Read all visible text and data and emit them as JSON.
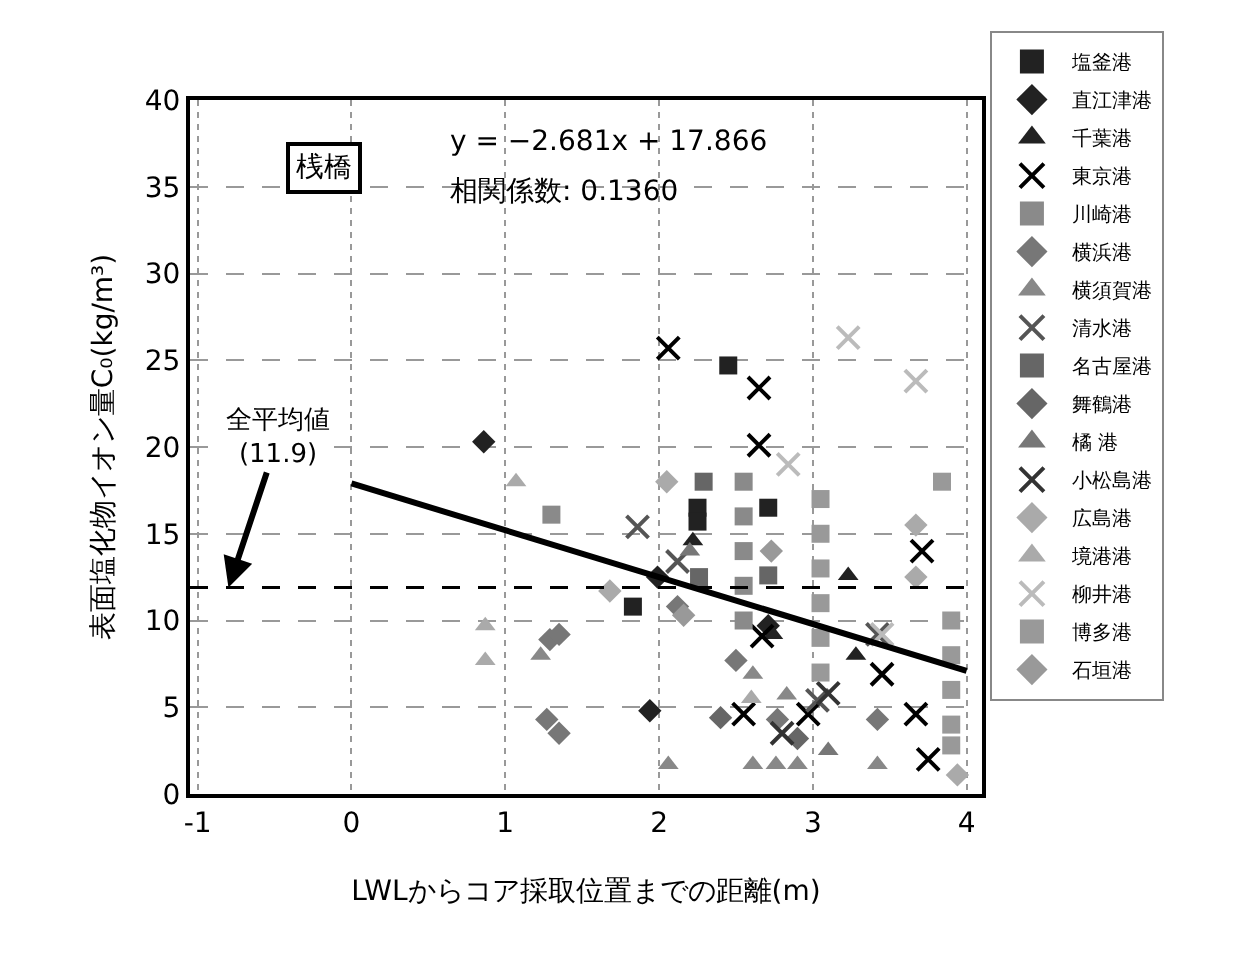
{
  "chart_data": {
    "type": "scatter",
    "xlabel": "LWLからコア採取位置までの距離(m)",
    "ylabel": "表面塩化物イオン量C₀(kg/m³)",
    "xlim": [
      -1.05,
      4.1
    ],
    "ylim": [
      0,
      40
    ],
    "xticks": [
      -1,
      0,
      1,
      2,
      3,
      4
    ],
    "yticks": [
      0,
      5,
      10,
      15,
      20,
      25,
      30,
      35,
      40
    ],
    "grid": true,
    "legend": "right",
    "annotations": [
      "桟橋",
      "y = −2.681x + 17.866",
      "相関係数: 0.1360",
      {
        "text": "全平均値\n(11.9)",
        "x": -0.8,
        "y": 11.9
      }
    ],
    "ref_lines": [
      {
        "axis": "y",
        "value": 11.9,
        "color": "#000000",
        "line_style": "dashed"
      }
    ],
    "series": [
      {
        "name": "塩釜港",
        "color": "#222222",
        "marker": "square",
        "x": [
          2.45,
          1.83,
          2.25,
          2.25,
          2.71
        ],
        "values": [
          24.7,
          10.8,
          16.5,
          15.7,
          16.5
        ]
      },
      {
        "name": "直江津港",
        "color": "#222222",
        "marker": "diamond",
        "x": [
          0.86,
          1.94,
          2.71,
          1.99
        ],
        "values": [
          20.3,
          4.8,
          9.7,
          12.5
        ]
      },
      {
        "name": "千葉港",
        "color": "#222222",
        "marker": "triangle",
        "x": [
          2.22,
          3.23,
          2.74,
          3.28
        ],
        "values": [
          14.6,
          12.6,
          9.2,
          8.0
        ]
      },
      {
        "name": "東京港",
        "color": "#000000",
        "marker": "cross",
        "x": [
          2.06,
          2.65,
          2.65,
          3.71,
          2.67,
          2.55,
          3.45,
          3.67,
          3.75,
          2.97
        ],
        "values": [
          25.7,
          23.4,
          20.1,
          14.0,
          9.1,
          4.6,
          6.9,
          4.6,
          2.0,
          4.6
        ]
      },
      {
        "name": "川崎港",
        "color": "#8a8a8a",
        "marker": "square",
        "x": [
          1.3,
          2.55,
          2.55,
          2.55,
          2.55,
          2.55
        ],
        "values": [
          16.1,
          10,
          12,
          14,
          16,
          18
        ]
      },
      {
        "name": "横浜港",
        "color": "#777777",
        "marker": "diamond",
        "x": [
          1.29,
          1.35,
          1.27,
          1.35,
          2.5,
          2.77,
          3.42,
          2.12
        ],
        "values": [
          8.9,
          9.2,
          4.3,
          3.5,
          7.7,
          4.3,
          4.3,
          10.8
        ]
      },
      {
        "name": "横須賀港",
        "color": "#888888",
        "marker": "triangle",
        "x": [
          2.61,
          2.61,
          2.76,
          2.9,
          3.42,
          2.06,
          1.23,
          2.83
        ],
        "values": [
          6.9,
          1.7,
          1.7,
          1.7,
          1.7,
          1.7,
          8,
          5.7
        ]
      },
      {
        "name": "清水港",
        "color": "#555555",
        "marker": "cross",
        "x": [
          1.86,
          2.12,
          3.03,
          3.42
        ],
        "values": [
          15.4,
          13.4,
          5.4,
          9.2
        ]
      },
      {
        "name": "名古屋港",
        "color": "#666666",
        "marker": "square",
        "x": [
          2.29,
          2.26,
          2.71
        ],
        "values": [
          18,
          12.5,
          12.6
        ]
      },
      {
        "name": "舞鶴港",
        "color": "#666666",
        "marker": "diamond",
        "x": [
          2.4,
          2.9
        ],
        "values": [
          4.4,
          3.2
        ]
      },
      {
        "name": "橘 港",
        "color": "#777777",
        "marker": "triangle",
        "x": [
          2.2,
          3.1
        ],
        "values": [
          14,
          2.5
        ]
      },
      {
        "name": "小松島港",
        "color": "#333333",
        "marker": "cross",
        "x": [
          2.8,
          3.1
        ],
        "values": [
          3.5,
          5.8
        ]
      },
      {
        "name": "広島港",
        "color": "#aaaaaa",
        "marker": "diamond",
        "x": [
          2.05,
          3.67,
          3.67,
          3.94,
          1.68
        ],
        "values": [
          18,
          15.5,
          12.5,
          1.1,
          11.7
        ]
      },
      {
        "name": "境港港",
        "color": "#aaaaaa",
        "marker": "triangle",
        "x": [
          0.87,
          0.87,
          1.07,
          2.6
        ],
        "values": [
          9.7,
          7.7,
          18,
          5.5
        ]
      },
      {
        "name": "柳井港",
        "color": "#bbbbbb",
        "marker": "cross",
        "x": [
          3.23,
          3.67,
          2.84,
          3.45
        ],
        "values": [
          26.3,
          23.8,
          19,
          9.2
        ]
      },
      {
        "name": "博多港",
        "color": "#999999",
        "marker": "square",
        "x": [
          3.05,
          3.05,
          3.05,
          3.05,
          3.05,
          3.05,
          3.9,
          3.9,
          3.9,
          3.9,
          3.84,
          3.9
        ],
        "values": [
          7,
          9,
          11,
          13,
          15,
          17,
          4,
          6,
          8,
          10,
          18,
          2.8
        ]
      },
      {
        "name": "石垣港",
        "color": "#999999",
        "marker": "diamond",
        "x": [
          2.16,
          2.73
        ],
        "values": [
          10.3,
          14
        ]
      },
      {
        "type": "line",
        "color": "#000000",
        "x": [
          0,
          4
        ],
        "values": [
          17.9,
          7.1
        ]
      }
    ]
  }
}
